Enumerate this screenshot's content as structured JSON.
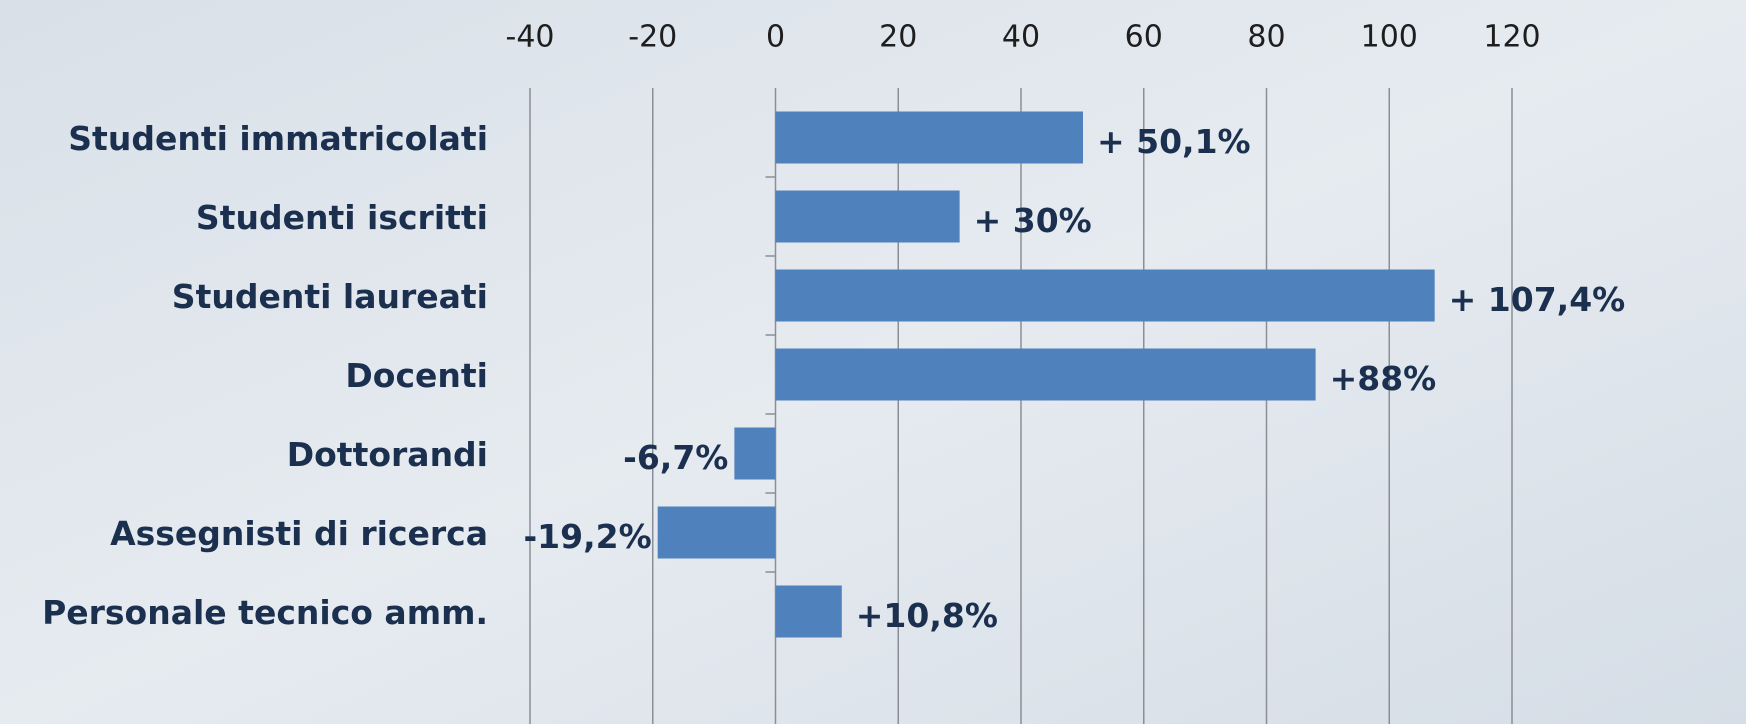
{
  "chart_data": {
    "type": "barh",
    "categories": [
      "Studenti immatricolati",
      "Studenti iscritti",
      "Studenti laureati",
      "Docenti",
      "Dottorandi",
      "Assegnisti di ricerca",
      "Personale tecnico amm."
    ],
    "values": [
      50.1,
      30,
      107.4,
      88,
      -6.7,
      -19.2,
      10.8
    ],
    "value_labels": [
      "+ 50,1%",
      "+ 30%",
      "+ 107,4%",
      "+88%",
      "-6,7%",
      "-19,2%",
      "+10,8%"
    ],
    "color": "#4f81bd",
    "xlim": [
      -40,
      120
    ],
    "xticks": [
      -40,
      -20,
      0,
      20,
      40,
      60,
      80,
      100,
      120
    ],
    "grid": true
  }
}
